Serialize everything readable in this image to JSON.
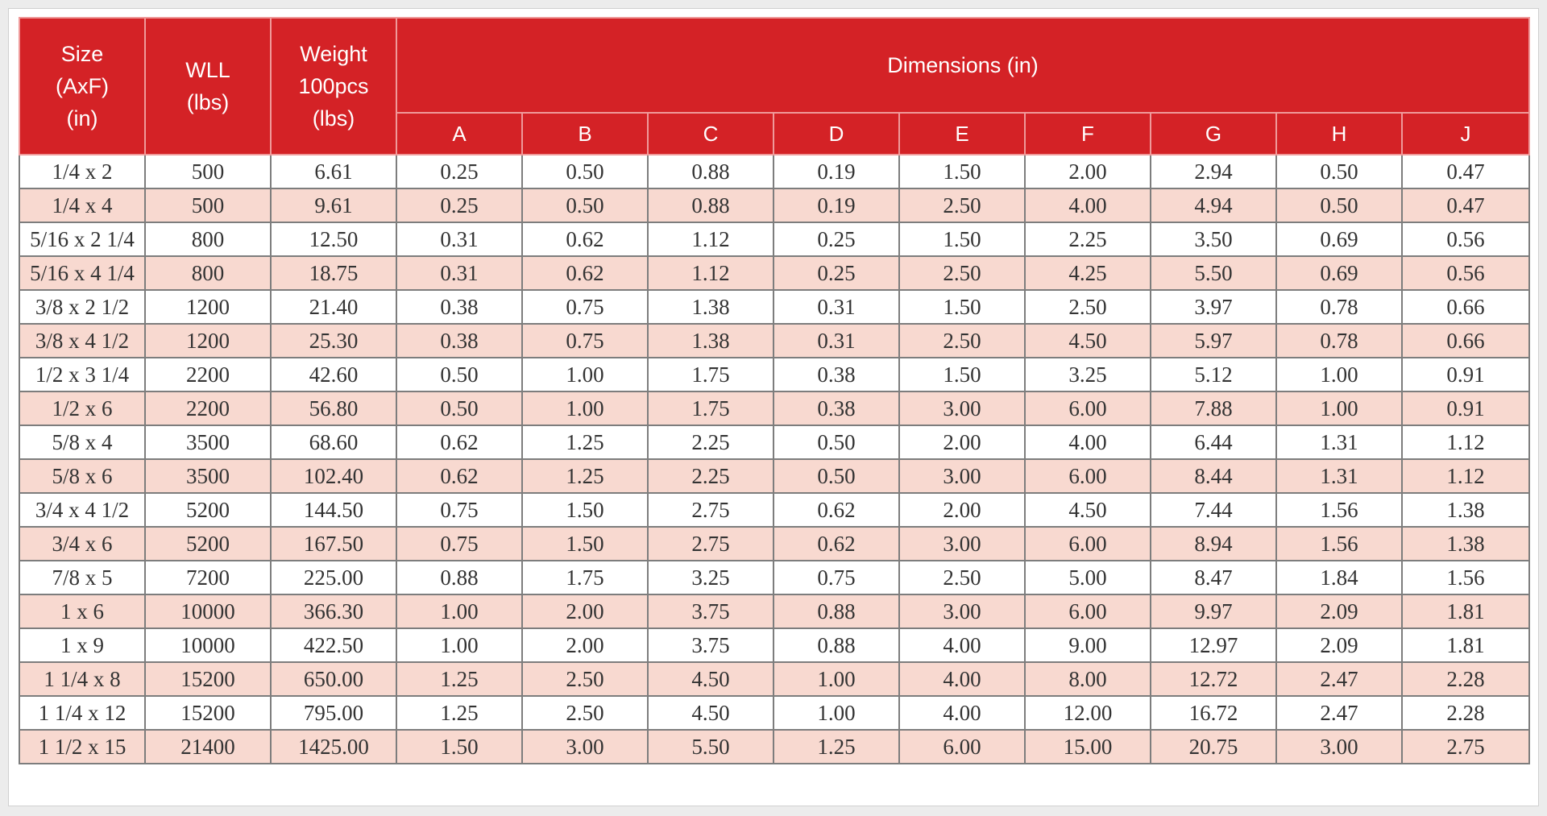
{
  "colors": {
    "header_bg": "#d42226",
    "header_text": "#ffffff",
    "stripe": "#f8d9d0",
    "row_bg": "#ffffff",
    "grid": "#7d7d7d"
  },
  "headers": {
    "size": "Size\n(AxF)\n(in)",
    "wll": "WLL\n(lbs)",
    "weight": "Weight\n100pcs\n(lbs)",
    "dimensions": "Dimensions (in)",
    "dims": [
      "A",
      "B",
      "C",
      "D",
      "E",
      "F",
      "G",
      "H",
      "J"
    ]
  },
  "rows": [
    [
      "1/4 x 2",
      "500",
      "6.61",
      "0.25",
      "0.50",
      "0.88",
      "0.19",
      "1.50",
      "2.00",
      "2.94",
      "0.50",
      "0.47"
    ],
    [
      "1/4 x 4",
      "500",
      "9.61",
      "0.25",
      "0.50",
      "0.88",
      "0.19",
      "2.50",
      "4.00",
      "4.94",
      "0.50",
      "0.47"
    ],
    [
      "5/16 x 2 1/4",
      "800",
      "12.50",
      "0.31",
      "0.62",
      "1.12",
      "0.25",
      "1.50",
      "2.25",
      "3.50",
      "0.69",
      "0.56"
    ],
    [
      "5/16 x 4 1/4",
      "800",
      "18.75",
      "0.31",
      "0.62",
      "1.12",
      "0.25",
      "2.50",
      "4.25",
      "5.50",
      "0.69",
      "0.56"
    ],
    [
      "3/8 x 2 1/2",
      "1200",
      "21.40",
      "0.38",
      "0.75",
      "1.38",
      "0.31",
      "1.50",
      "2.50",
      "3.97",
      "0.78",
      "0.66"
    ],
    [
      "3/8 x 4 1/2",
      "1200",
      "25.30",
      "0.38",
      "0.75",
      "1.38",
      "0.31",
      "2.50",
      "4.50",
      "5.97",
      "0.78",
      "0.66"
    ],
    [
      "1/2 x 3 1/4",
      "2200",
      "42.60",
      "0.50",
      "1.00",
      "1.75",
      "0.38",
      "1.50",
      "3.25",
      "5.12",
      "1.00",
      "0.91"
    ],
    [
      "1/2 x 6",
      "2200",
      "56.80",
      "0.50",
      "1.00",
      "1.75",
      "0.38",
      "3.00",
      "6.00",
      "7.88",
      "1.00",
      "0.91"
    ],
    [
      "5/8 x 4",
      "3500",
      "68.60",
      "0.62",
      "1.25",
      "2.25",
      "0.50",
      "2.00",
      "4.00",
      "6.44",
      "1.31",
      "1.12"
    ],
    [
      "5/8 x 6",
      "3500",
      "102.40",
      "0.62",
      "1.25",
      "2.25",
      "0.50",
      "3.00",
      "6.00",
      "8.44",
      "1.31",
      "1.12"
    ],
    [
      "3/4 x 4 1/2",
      "5200",
      "144.50",
      "0.75",
      "1.50",
      "2.75",
      "0.62",
      "2.00",
      "4.50",
      "7.44",
      "1.56",
      "1.38"
    ],
    [
      "3/4 x 6",
      "5200",
      "167.50",
      "0.75",
      "1.50",
      "2.75",
      "0.62",
      "3.00",
      "6.00",
      "8.94",
      "1.56",
      "1.38"
    ],
    [
      "7/8 x 5",
      "7200",
      "225.00",
      "0.88",
      "1.75",
      "3.25",
      "0.75",
      "2.50",
      "5.00",
      "8.47",
      "1.84",
      "1.56"
    ],
    [
      "1 x 6",
      "10000",
      "366.30",
      "1.00",
      "2.00",
      "3.75",
      "0.88",
      "3.00",
      "6.00",
      "9.97",
      "2.09",
      "1.81"
    ],
    [
      "1 x 9",
      "10000",
      "422.50",
      "1.00",
      "2.00",
      "3.75",
      "0.88",
      "4.00",
      "9.00",
      "12.97",
      "2.09",
      "1.81"
    ],
    [
      "1 1/4 x 8",
      "15200",
      "650.00",
      "1.25",
      "2.50",
      "4.50",
      "1.00",
      "4.00",
      "8.00",
      "12.72",
      "2.47",
      "2.28"
    ],
    [
      "1 1/4 x 12",
      "15200",
      "795.00",
      "1.25",
      "2.50",
      "4.50",
      "1.00",
      "4.00",
      "12.00",
      "16.72",
      "2.47",
      "2.28"
    ],
    [
      "1 1/2 x 15",
      "21400",
      "1425.00",
      "1.50",
      "3.00",
      "5.50",
      "1.25",
      "6.00",
      "15.00",
      "20.75",
      "3.00",
      "2.75"
    ]
  ]
}
